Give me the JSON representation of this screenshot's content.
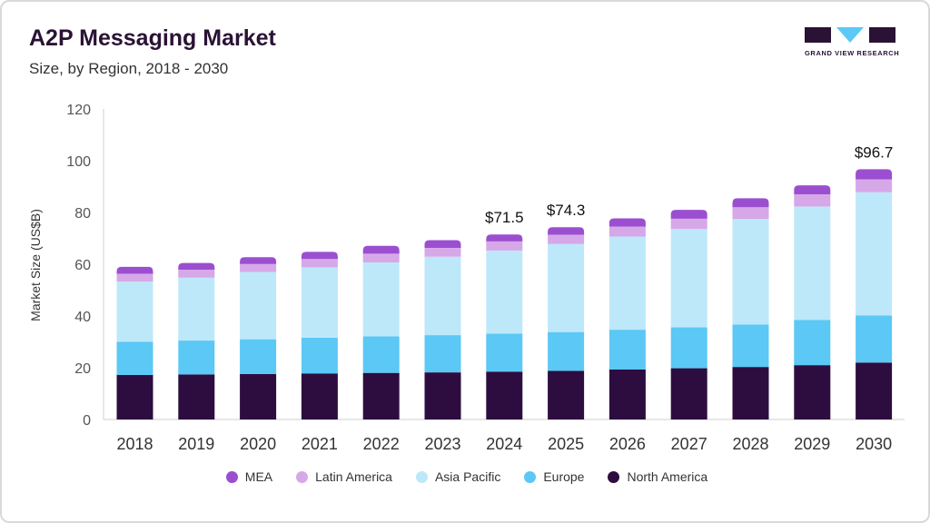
{
  "header": {
    "title": "A2P Messaging Market",
    "subtitle": "Size, by Region, 2018 - 2030"
  },
  "logo": {
    "text": "GRAND VIEW RESEARCH"
  },
  "chart_data": {
    "type": "bar",
    "stacked": true,
    "categories": [
      "2018",
      "2019",
      "2020",
      "2021",
      "2022",
      "2023",
      "2024",
      "2025",
      "2026",
      "2027",
      "2028",
      "2029",
      "2030"
    ],
    "ylabel": "Market Size (US$B)",
    "ylim": [
      0,
      120
    ],
    "yticks": [
      0,
      20,
      40,
      60,
      80,
      100,
      120
    ],
    "grid": false,
    "legend_position": "bottom",
    "series": [
      {
        "name": "North America",
        "color": "#2d0d3f",
        "values": [
          17.2,
          17.4,
          17.6,
          17.8,
          18.0,
          18.2,
          18.5,
          18.8,
          19.3,
          19.8,
          20.3,
          21.0,
          22.0
        ]
      },
      {
        "name": "Europe",
        "color": "#5bc8f5",
        "values": [
          12.8,
          13.1,
          13.4,
          13.8,
          14.1,
          14.4,
          14.7,
          15.0,
          15.4,
          15.8,
          16.4,
          17.5,
          18.2
        ]
      },
      {
        "name": "Asia Pacific",
        "color": "#bde8f9",
        "values": [
          23.3,
          24.3,
          26.0,
          27.2,
          28.6,
          30.3,
          32.1,
          34.0,
          36.0,
          38.0,
          40.8,
          43.8,
          47.6
        ]
      },
      {
        "name": "Latin America",
        "color": "#d6a8e8",
        "values": [
          3.0,
          3.1,
          3.1,
          3.2,
          3.4,
          3.4,
          3.5,
          3.6,
          3.8,
          4.0,
          4.5,
          4.7,
          5.0
        ]
      },
      {
        "name": "MEA",
        "color": "#9b4fd0",
        "values": [
          2.7,
          2.6,
          2.6,
          2.8,
          3.0,
          3.0,
          2.7,
          2.9,
          3.2,
          3.4,
          3.5,
          3.5,
          3.9
        ]
      }
    ],
    "annotations": [
      {
        "category": "2024",
        "label": "$71.5",
        "value": 71.5
      },
      {
        "category": "2025",
        "label": "$74.3",
        "value": 74.3
      },
      {
        "category": "2030",
        "label": "$96.7",
        "value": 96.7
      }
    ]
  }
}
